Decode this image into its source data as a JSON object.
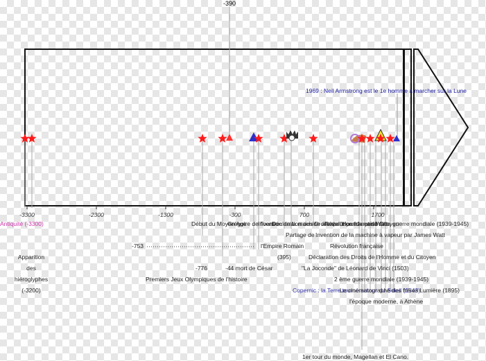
{
  "timeline": {
    "top_marker": "-390",
    "axis_ticks": [
      "-3300",
      "-2300",
      "-1300",
      "-300",
      "700",
      "1700"
    ],
    "antiquity_label": "Antiquité (-3300)",
    "moon_label": "1969 : Neil Armstrong est le 1e homme a marcher sur la Lune",
    "dotted_year": "-753",
    "labels": {
      "hieroglyphs": [
        "Apparition",
        "des",
        "hiéroglyphes",
        "(-3200)"
      ],
      "moyen_age": "Début du Moyen Age",
      "gregory": "Grégoire de Tours",
      "olympics_year": "-776",
      "olympics_text": "Premiers Jeux Olympiques de l'histoire",
      "caesar": "-44 mort de César",
      "partage": [
        "Partage de",
        "l'Empire Romain",
        "(395)"
      ],
      "invention": "Invention de la machine à vapeur par James Watt",
      "rev_francaise": "Révolution française",
      "declaration": "Déclaration des Droits de l'Homme et du Citoyen",
      "joconde": "\"La Joconde\" de Léonard de Vinci (1503)",
      "ww2": "2 ème guerre mondiale (1939-1945)",
      "copernic": "Copernic : la Terre tourne autour du Soleil (1543)",
      "lumiere": "Le cinématographe des frères Lumière (1895)",
      "epoque": "l'époque moderne, à Athène",
      "magellan": "1er tour du monde, Magellan et El Cano."
    }
  },
  "colors": {
    "star": "#ff1a1a",
    "triangle": "#2e2ecc",
    "antiquity": "#cc33aa",
    "moon": "#1a1aa0",
    "copernic": "#3333aa"
  }
}
